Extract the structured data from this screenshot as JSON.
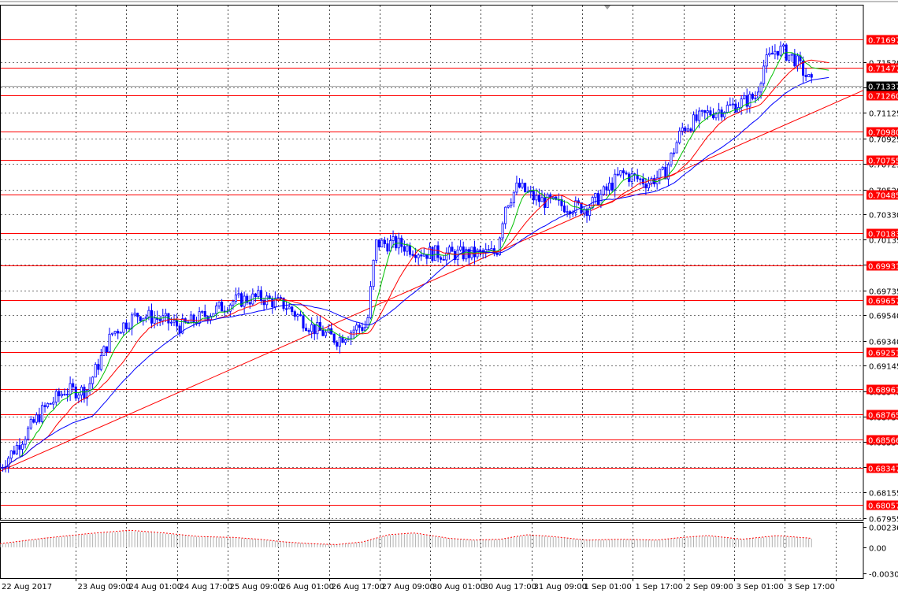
{
  "chart_data": [
    {
      "type": "candlestick",
      "panel": "price",
      "colors": {
        "background": "#ffffff",
        "candle": "#0000ff",
        "grid": "#000000",
        "level_line": "#ff0000",
        "trendline": "#ff0000",
        "ma_fast": "#00c000",
        "ma_mid": "#ff0000",
        "ma_slow": "#0000ff",
        "current_price_bg": "#000000",
        "level_label_bg": "#ff0000"
      },
      "y_range": [
        0.6794,
        0.7197
      ],
      "y_ticks": [
        "0.71520",
        "0.71325",
        "0.71125",
        "0.70925",
        "0.70725",
        "0.70520",
        "0.70330",
        "0.70135",
        "0.69935",
        "0.69735",
        "0.69540",
        "0.69340",
        "0.69145",
        "0.68945",
        "0.68750",
        "0.68550",
        "0.68350",
        "0.68155",
        "0.67955"
      ],
      "x_labels": [
        "22 Aug 2017",
        "23 Aug 09:00",
        "24 Aug 01:00",
        "24 Aug 17:00",
        "25 Aug 09:00",
        "26 Aug 01:00",
        "26 Aug 17:00",
        "27 Aug 09:00",
        "30 Aug 01:00",
        "30 Aug 17:00",
        "31 Aug 09:00",
        "1 Sep 01:00",
        "1 Sep 17:00",
        "2 Sep 09:00",
        "3 Sep 01:00",
        "3 Sep 17:00"
      ],
      "levels": [
        "0.71697",
        "0.71477",
        "0.71260",
        "0.70980",
        "0.70755",
        "0.70485",
        "0.70183",
        "0.69931",
        "0.69657",
        "0.69251",
        "0.68961",
        "0.68765",
        "0.68566",
        "0.68347",
        "0.68057"
      ],
      "current_price": "0.71337",
      "trendline": {
        "from": [
          0,
          0.6832
        ],
        "to": [
          1.0,
          0.713
        ]
      },
      "key_points": [
        [
          0.0,
          0.6835
        ],
        [
          0.02,
          0.6852
        ],
        [
          0.05,
          0.688
        ],
        [
          0.075,
          0.6895
        ],
        [
          0.1,
          0.6895
        ],
        [
          0.13,
          0.694
        ],
        [
          0.16,
          0.6955
        ],
        [
          0.19,
          0.695
        ],
        [
          0.21,
          0.6945
        ],
        [
          0.24,
          0.6955
        ],
        [
          0.27,
          0.6965
        ],
        [
          0.3,
          0.6968
        ],
        [
          0.33,
          0.6962
        ],
        [
          0.36,
          0.6945
        ],
        [
          0.39,
          0.6935
        ],
        [
          0.415,
          0.6945
        ],
        [
          0.425,
          0.6945
        ],
        [
          0.435,
          0.701
        ],
        [
          0.46,
          0.701
        ],
        [
          0.49,
          0.7003
        ],
        [
          0.52,
          0.7002
        ],
        [
          0.55,
          0.7002
        ],
        [
          0.575,
          0.7003
        ],
        [
          0.585,
          0.704
        ],
        [
          0.6,
          0.7055
        ],
        [
          0.62,
          0.7045
        ],
        [
          0.65,
          0.704
        ],
        [
          0.68,
          0.7038
        ],
        [
          0.7,
          0.705
        ],
        [
          0.72,
          0.7065
        ],
        [
          0.75,
          0.7058
        ],
        [
          0.77,
          0.7065
        ],
        [
          0.79,
          0.71
        ],
        [
          0.82,
          0.7112
        ],
        [
          0.85,
          0.7118
        ],
        [
          0.875,
          0.7125
        ],
        [
          0.885,
          0.715
        ],
        [
          0.9,
          0.7163
        ],
        [
          0.92,
          0.7155
        ],
        [
          0.94,
          0.7135
        ]
      ]
    },
    {
      "type": "histogram",
      "panel": "oscillator",
      "colors": {
        "bars": "#b0b0b0",
        "signal": "#ff0000"
      },
      "y_ticks": [
        "0.002364",
        "0.00",
        "-0.00303"
      ],
      "y_range": [
        -0.00303,
        0.002364
      ],
      "key_points": [
        [
          0.0,
          0.0004
        ],
        [
          0.05,
          0.001
        ],
        [
          0.1,
          0.0015
        ],
        [
          0.15,
          0.0019
        ],
        [
          0.19,
          0.0016
        ],
        [
          0.23,
          0.0012
        ],
        [
          0.27,
          0.0011
        ],
        [
          0.3,
          0.0009
        ],
        [
          0.33,
          0.0006
        ],
        [
          0.36,
          0.0004
        ],
        [
          0.39,
          0.0003
        ],
        [
          0.42,
          0.0006
        ],
        [
          0.45,
          0.0014
        ],
        [
          0.48,
          0.0016
        ],
        [
          0.52,
          0.001
        ],
        [
          0.55,
          0.0008
        ],
        [
          0.58,
          0.0009
        ],
        [
          0.61,
          0.0014
        ],
        [
          0.64,
          0.0012
        ],
        [
          0.68,
          0.0008
        ],
        [
          0.72,
          0.0009
        ],
        [
          0.76,
          0.0008
        ],
        [
          0.79,
          0.0011
        ],
        [
          0.82,
          0.0013
        ],
        [
          0.86,
          0.0009
        ],
        [
          0.9,
          0.0013
        ],
        [
          0.94,
          0.001
        ]
      ]
    }
  ]
}
